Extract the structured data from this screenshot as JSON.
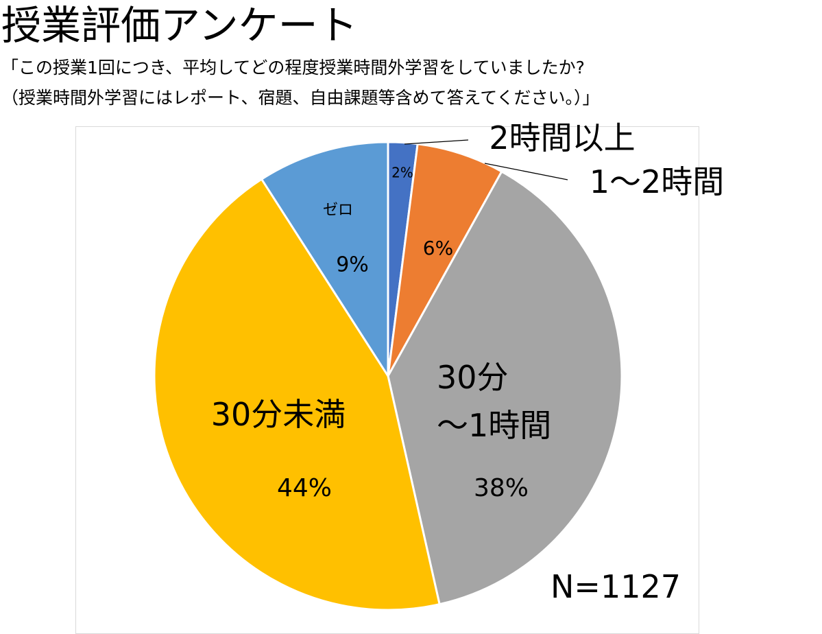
{
  "header": {
    "title": "授業評価アンケート",
    "subtitle_line1": "「この授業1回につき、平均してどの程度授業時間外学習をしていましたか?",
    "subtitle_line2": "（授業時間外学習にはレポート、宿題、自由課題等含めて答えてください。）」"
  },
  "sample_size": "N=1127",
  "chart_data": {
    "type": "pie",
    "title": "授業評価アンケート",
    "slices": [
      {
        "label": "2時間以上",
        "value": 2,
        "value_label": "2%",
        "color": "#4472C4"
      },
      {
        "label": "1～2時間",
        "value": 6,
        "value_label": "6%",
        "color": "#ED7D31"
      },
      {
        "label": "30分\n～1時間",
        "value": 38,
        "value_label": "38%",
        "color": "#A5A5A5"
      },
      {
        "label": "30分未満",
        "value": 44,
        "value_label": "44%",
        "color": "#FFC000"
      },
      {
        "label": "ゼロ",
        "value": 9,
        "value_label": "9%",
        "color": "#5B9BD5"
      }
    ],
    "start_angle_deg": 0,
    "direction": "clockwise",
    "legend": "none"
  }
}
